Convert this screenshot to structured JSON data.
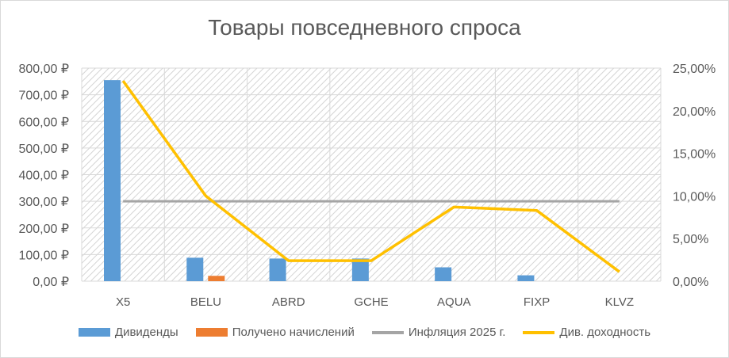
{
  "chart_data": {
    "type": "bar",
    "title": "Товары повседневного спроса",
    "categories": [
      "X5",
      "BELU",
      "ABRD",
      "GCHE",
      "AQUA",
      "FIXP",
      "KLVZ"
    ],
    "y_left": {
      "min": 0,
      "max": 800,
      "step": 100,
      "tick_labels": [
        "0,00 ₽",
        "100,00 ₽",
        "200,00 ₽",
        "300,00 ₽",
        "400,00 ₽",
        "500,00 ₽",
        "600,00 ₽",
        "700,00 ₽",
        "800,00 ₽"
      ]
    },
    "y_right": {
      "min": 0,
      "max": 0.25,
      "step": 0.05,
      "tick_labels": [
        "0,00%",
        "5,00%",
        "10,00%",
        "15,00%",
        "20,00%",
        "25,00%"
      ]
    },
    "grid": true,
    "legend_position": "bottom",
    "series": [
      {
        "name": "Дивиденды",
        "type": "bar",
        "axis": "left",
        "color": "#5b9bd5",
        "values": [
          755,
          88,
          85,
          85,
          52,
          22,
          0
        ]
      },
      {
        "name": "Получено начислений",
        "type": "bar",
        "axis": "left",
        "color": "#ed7d31",
        "values": [
          0,
          20,
          0,
          0,
          0,
          0,
          0
        ]
      },
      {
        "name": "Инфляция 2025 г.",
        "type": "line",
        "axis": "left",
        "color": "#a5a5a5",
        "values": [
          300,
          300,
          300,
          300,
          300,
          300,
          300
        ]
      },
      {
        "name": "Див. доходность",
        "type": "line",
        "axis": "right",
        "color": "#ffc000",
        "values": [
          0.235,
          0.1,
          0.024,
          0.024,
          0.087,
          0.083,
          0.011
        ]
      }
    ]
  }
}
